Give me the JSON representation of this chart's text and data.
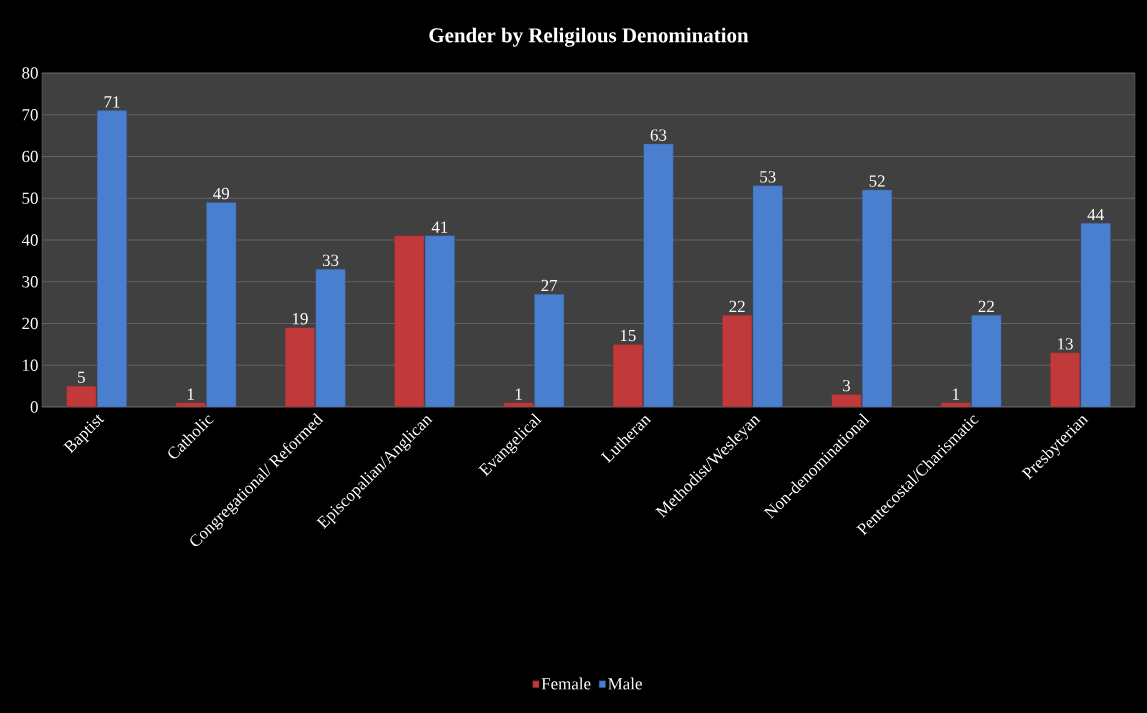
{
  "chart_data": {
    "type": "bar",
    "title": "Gender by Religilous Denomination",
    "categories": [
      "Baptist",
      "Catholic",
      "Congregational/ Reformed",
      "Episcopalian/Anglican",
      "Evangelical",
      "Lutheran",
      "Methodist/Wesleyan",
      "Non-denominational",
      "Pentecostal/Charismatic",
      "Presbyterian"
    ],
    "series": [
      {
        "name": "Female",
        "color": "#c0393b",
        "values": [
          5,
          1,
          19,
          41,
          1,
          15,
          22,
          3,
          1,
          13
        ],
        "value_labels": [
          "5",
          "1",
          "19",
          null,
          "1",
          "15",
          "22",
          "3",
          "1",
          "13"
        ]
      },
      {
        "name": "Male",
        "color": "#4a7fd0",
        "values": [
          71,
          49,
          33,
          41,
          27,
          63,
          53,
          52,
          22,
          44
        ],
        "value_labels": [
          "71",
          "49",
          "33",
          "41",
          "27",
          "63",
          "53",
          "52",
          "22",
          "44"
        ]
      }
    ],
    "ylim": [
      0,
      80
    ],
    "yticks": [
      0,
      10,
      20,
      30,
      40,
      50,
      60,
      70,
      80
    ],
    "grid": "y",
    "legend": "bottom"
  }
}
